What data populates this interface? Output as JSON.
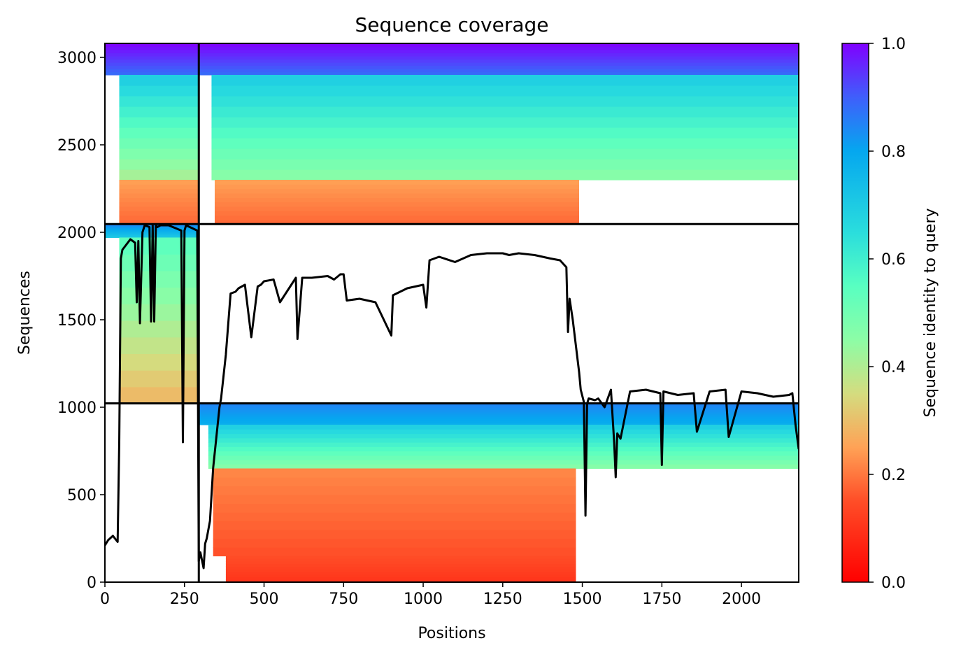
{
  "chart_data": {
    "type": "heatmap",
    "title": "Sequence coverage",
    "xlabel": "Positions",
    "ylabel": "Sequences",
    "colorbar_label": "Sequence identity to query",
    "colormap": "rainbow_r",
    "xlim": [
      0,
      2180
    ],
    "ylim": [
      0,
      3080
    ],
    "clim": [
      0,
      1.0
    ],
    "xticks": [
      0,
      250,
      500,
      750,
      1000,
      1250,
      1500,
      1750,
      2000
    ],
    "yticks": [
      0,
      500,
      1000,
      1500,
      2000,
      2500,
      3000
    ],
    "cticks": [
      "0.0",
      "0.2",
      "0.4",
      "0.6",
      "0.8",
      "1.0"
    ],
    "grid": false,
    "segment_boundaries": {
      "vertical_x": [
        295
      ],
      "horizontal_y": [
        1022,
        2047
      ]
    },
    "coverage_blocks": [
      {
        "x": [
          0,
          295
        ],
        "y": [
          2900,
          3080
        ],
        "identity_range": [
          0.88,
          1.0
        ]
      },
      {
        "x": [
          45,
          295
        ],
        "y": [
          2300,
          2900
        ],
        "identity_range": [
          0.4,
          0.7
        ]
      },
      {
        "x": [
          45,
          295
        ],
        "y": [
          2047,
          2300
        ],
        "identity_range": [
          0.18,
          0.25
        ]
      },
      {
        "x": [
          295,
          2180
        ],
        "y": [
          2900,
          3080
        ],
        "identity_range": [
          0.88,
          1.0
        ]
      },
      {
        "x": [
          335,
          2180
        ],
        "y": [
          2300,
          2900
        ],
        "identity_range": [
          0.45,
          0.7
        ]
      },
      {
        "x": [
          345,
          1490
        ],
        "y": [
          2047,
          2300
        ],
        "identity_range": [
          0.18,
          0.25
        ]
      },
      {
        "x": [
          0,
          295
        ],
        "y": [
          1970,
          2047
        ],
        "identity_range": [
          0.7,
          0.85
        ]
      },
      {
        "x": [
          45,
          295
        ],
        "y": [
          1022,
          1970
        ],
        "identity_range": [
          0.28,
          0.55
        ]
      },
      {
        "x": [
          295,
          2180
        ],
        "y": [
          900,
          1022
        ],
        "identity_range": [
          0.78,
          0.85
        ]
      },
      {
        "x": [
          325,
          2180
        ],
        "y": [
          650,
          900
        ],
        "identity_range": [
          0.45,
          0.7
        ]
      },
      {
        "x": [
          340,
          1480
        ],
        "y": [
          150,
          650
        ],
        "identity_range": [
          0.15,
          0.22
        ]
      },
      {
        "x": [
          380,
          1480
        ],
        "y": [
          0,
          150
        ],
        "identity_range": [
          0.1,
          0.15
        ]
      }
    ],
    "series": [
      {
        "x": [
          0,
          10,
          25,
          40,
          45,
          50,
          55,
          80,
          95,
          100,
          105,
          110,
          118,
          125,
          140,
          145,
          150,
          155,
          160,
          165,
          175,
          200,
          240,
          245,
          250,
          255,
          290,
          295,
          300,
          310,
          315,
          320,
          330,
          340,
          360,
          365,
          380,
          395,
          410,
          420,
          440,
          460,
          480,
          490,
          500,
          530,
          550,
          600,
          605,
          620,
          650,
          700,
          720,
          740,
          750,
          760,
          800,
          850,
          900,
          905,
          950,
          1000,
          1010,
          1020,
          1050,
          1100,
          1150,
          1200,
          1250,
          1270,
          1300,
          1350,
          1400,
          1430,
          1450,
          1455,
          1460,
          1470,
          1490,
          1495,
          1505,
          1510,
          1515,
          1520,
          1540,
          1550,
          1570,
          1590,
          1600,
          1605,
          1610,
          1620,
          1650,
          1700,
          1745,
          1750,
          1755,
          1800,
          1850,
          1860,
          1900,
          1950,
          1960,
          2000,
          2050,
          2100,
          2150,
          2160,
          2170,
          2180
        ],
        "y": [
          210,
          240,
          265,
          230,
          800,
          1850,
          1900,
          1960,
          1940,
          1600,
          1950,
          1480,
          2000,
          2040,
          2030,
          1490,
          2040,
          1490,
          2040,
          2030,
          2040,
          2040,
          2010,
          800,
          2010,
          2040,
          2010,
          120,
          170,
          80,
          220,
          250,
          350,
          650,
          1000,
          1050,
          1300,
          1650,
          1660,
          1680,
          1700,
          1400,
          1690,
          1700,
          1720,
          1730,
          1600,
          1740,
          1390,
          1740,
          1740,
          1750,
          1730,
          1760,
          1760,
          1610,
          1620,
          1600,
          1410,
          1640,
          1680,
          1700,
          1570,
          1840,
          1860,
          1830,
          1870,
          1880,
          1880,
          1870,
          1880,
          1870,
          1850,
          1840,
          1800,
          1430,
          1620,
          1500,
          1200,
          1100,
          1030,
          380,
          1020,
          1050,
          1040,
          1050,
          1000,
          1100,
          800,
          600,
          850,
          820,
          1090,
          1100,
          1080,
          670,
          1090,
          1070,
          1080,
          860,
          1090,
          1100,
          830,
          1090,
          1080,
          1060,
          1070,
          1080,
          900,
          760
        ]
      }
    ]
  }
}
